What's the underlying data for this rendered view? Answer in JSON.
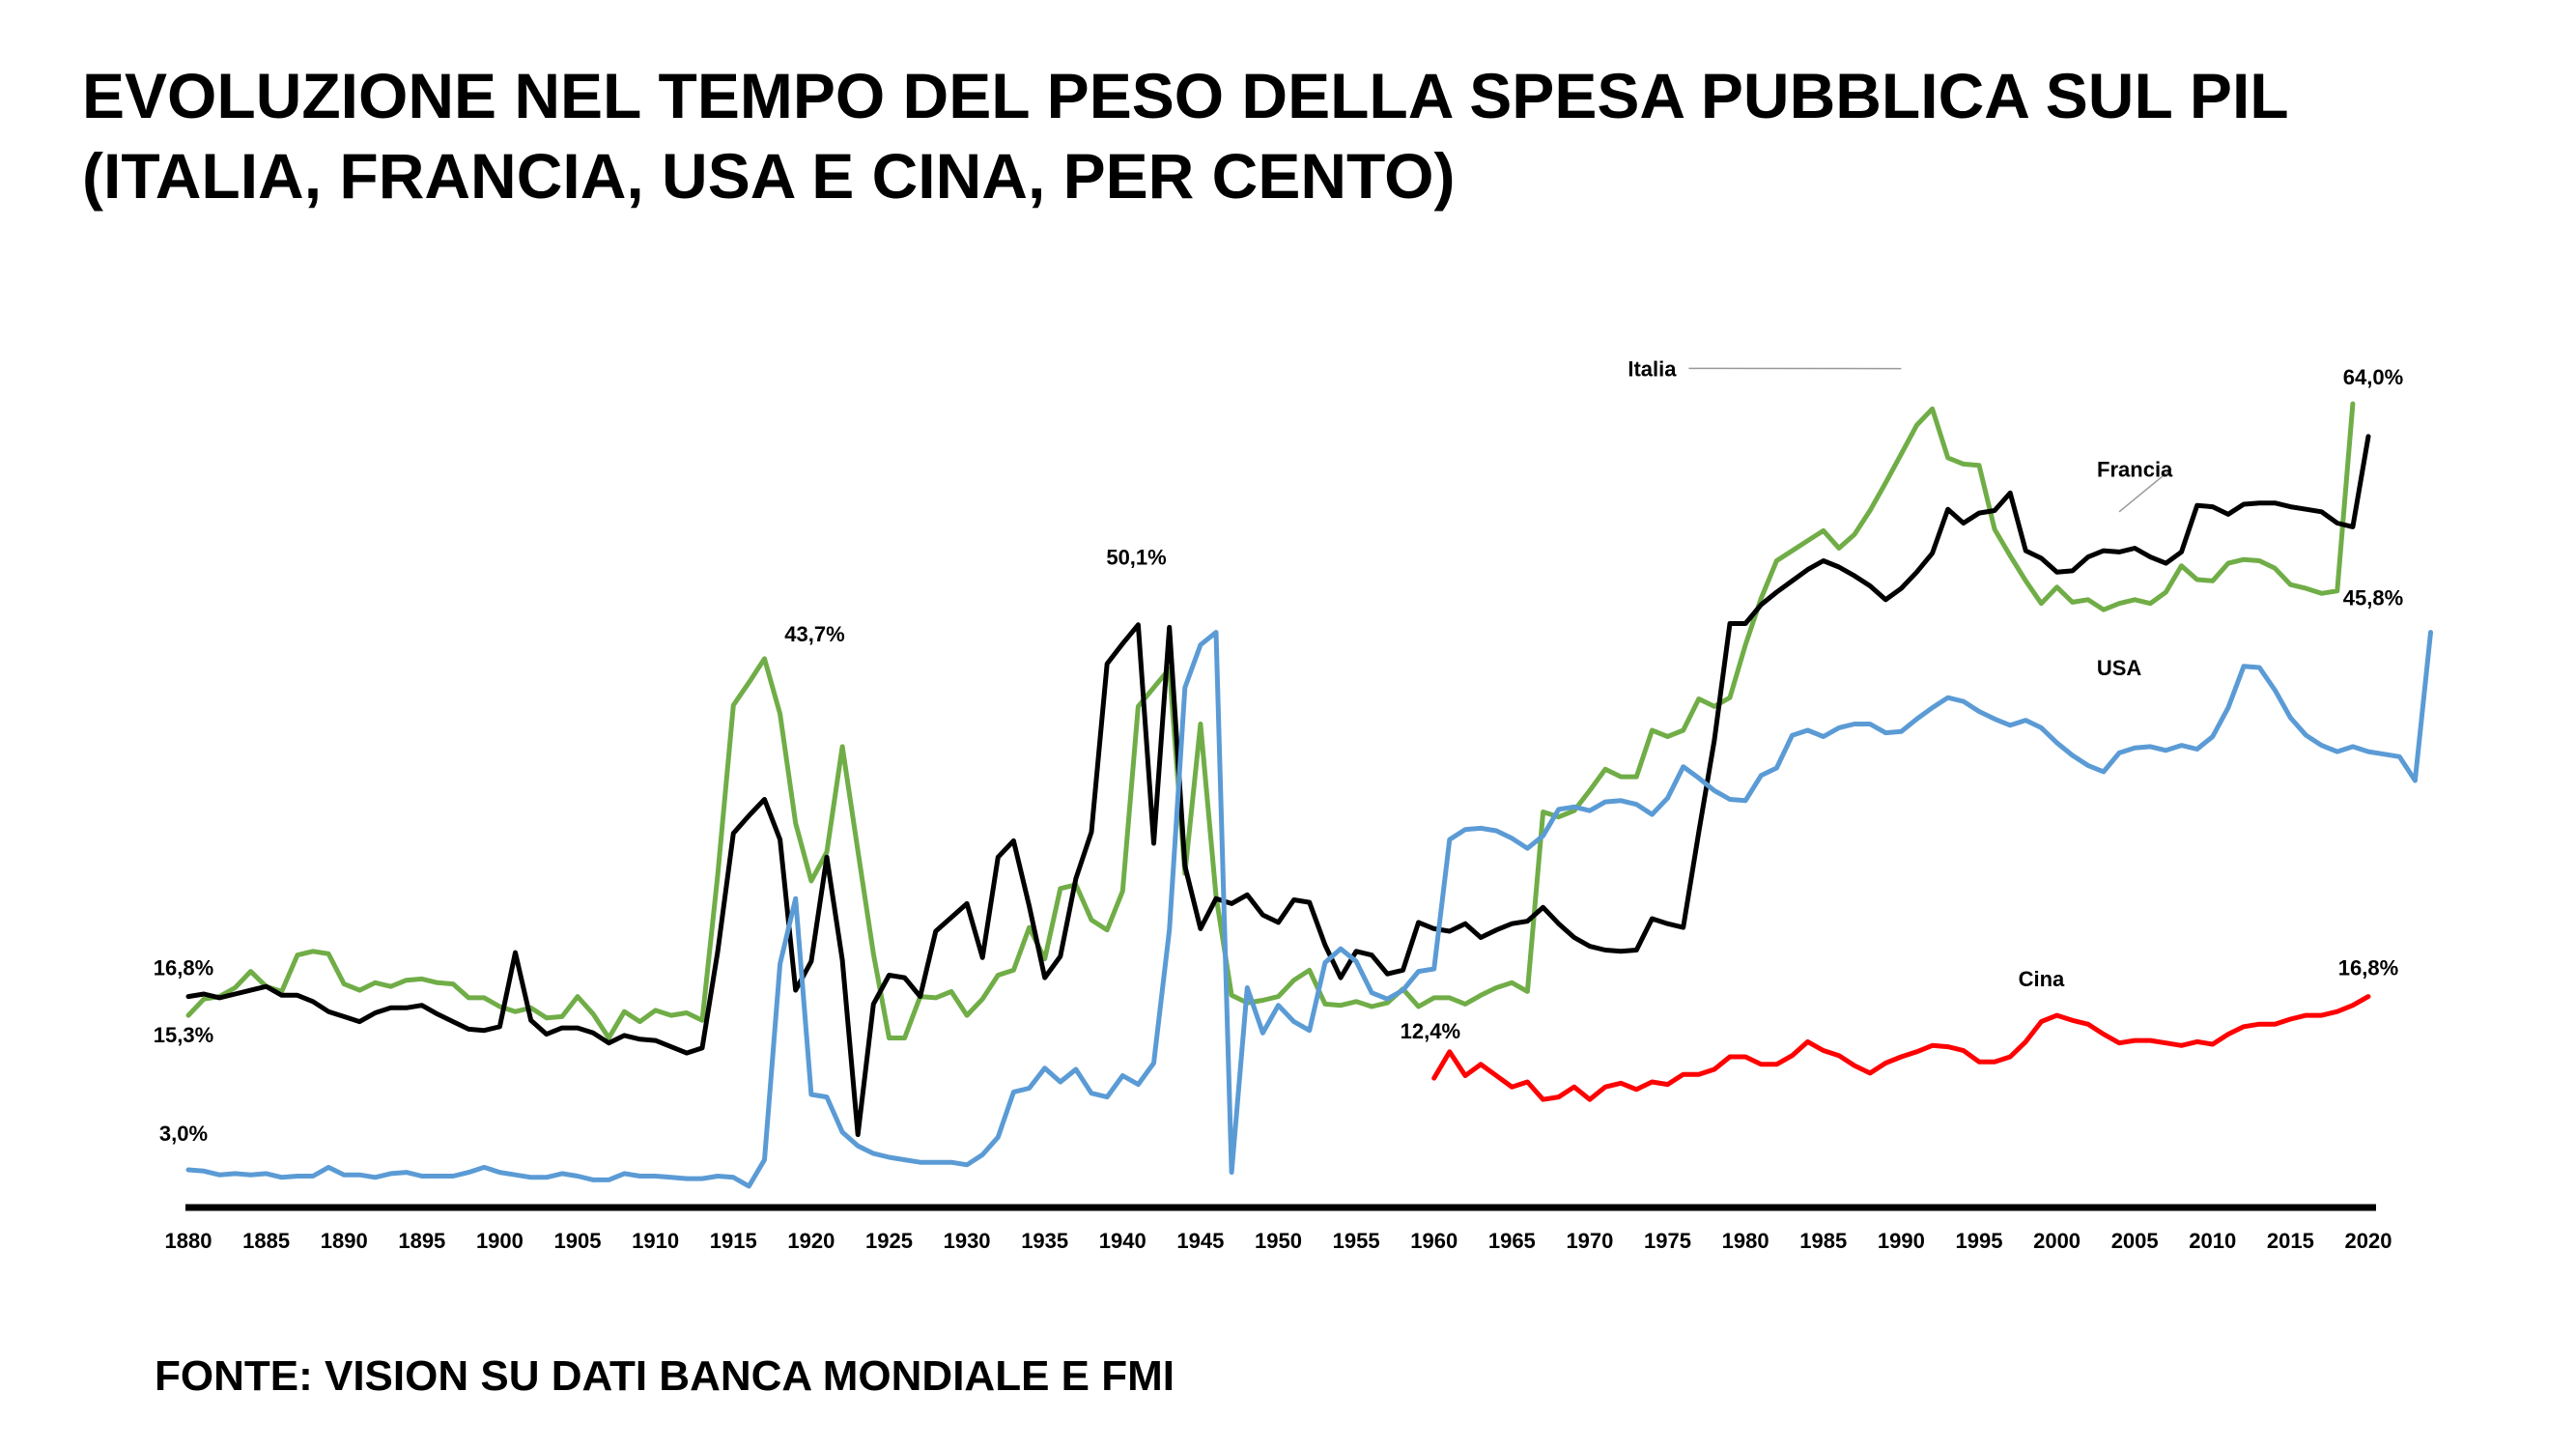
{
  "page": {
    "title_line1": "EVOLUZIONE NEL TEMPO DEL PESO DELLA SPESA PUBBLICA SUL PIL",
    "title_line2": "(ITALIA, FRANCIA, USA E CINA, PER CENTO)",
    "source": "FONTE: VISION SU DATI BANCA MONDIALE E FMI"
  },
  "chart_data": {
    "type": "line",
    "title": "EVOLUZIONE NEL TEMPO DEL PESO DELLA SPESA PUBBLICA SUL PIL (ITALIA, FRANCIA, USA E CINA, PER CENTO)",
    "xlabel": "",
    "ylabel": "",
    "xlim": [
      1880,
      2020
    ],
    "ylim": [
      0,
      70
    ],
    "grid": false,
    "x_ticks": [
      1880,
      1885,
      1890,
      1895,
      1900,
      1905,
      1910,
      1915,
      1920,
      1925,
      1930,
      1935,
      1940,
      1945,
      1950,
      1955,
      1960,
      1965,
      1970,
      1975,
      1980,
      1985,
      1990,
      1995,
      2000,
      2005,
      2010,
      2015,
      2020
    ],
    "series": [
      {
        "name": "Italia",
        "color": "#70AD47",
        "start_year": 1880,
        "values": [
          15.3,
          16.6,
          16.8,
          17.5,
          18.8,
          17.6,
          17.2,
          20.1,
          20.4,
          20.2,
          17.8,
          17.3,
          17.9,
          17.6,
          18.1,
          18.2,
          17.9,
          17.8,
          16.7,
          16.7,
          16.0,
          15.6,
          15.9,
          15.1,
          15.2,
          16.8,
          15.4,
          13.5,
          15.6,
          14.8,
          15.7,
          15.3,
          15.5,
          14.9,
          26.5,
          40.0,
          41.8,
          43.7,
          39.3,
          30.6,
          26.0,
          28.3,
          36.7,
          28.4,
          20.2,
          13.5,
          13.5,
          16.8,
          16.7,
          17.2,
          15.3,
          16.6,
          18.5,
          18.9,
          22.3,
          19.8,
          25.4,
          25.7,
          22.9,
          22.1,
          25.2,
          39.9,
          41.4,
          42.9,
          26.6,
          38.5,
          24.8,
          16.9,
          16.3,
          16.5,
          16.8,
          18.1,
          18.9,
          16.2,
          16.1,
          16.4,
          16.0,
          16.3,
          17.4,
          16.0,
          16.7,
          16.7,
          16.2,
          16.9,
          17.5,
          17.9,
          17.2,
          31.5,
          31.1,
          31.6,
          33.2,
          34.9,
          34.3,
          34.3,
          38.0,
          37.5,
          38.0,
          40.5,
          39.9,
          40.6,
          44.8,
          48.5,
          51.5,
          52.3,
          53.1,
          53.9,
          52.5,
          53.6,
          55.5,
          57.7,
          60.0,
          62.3,
          63.6,
          59.7,
          59.2,
          59.1,
          54.0,
          51.9,
          49.9,
          48.1,
          49.4,
          48.2,
          48.4,
          47.6,
          48.1,
          48.4,
          48.1,
          49.0,
          51.1,
          50.0,
          49.9,
          51.3,
          51.6,
          51.5,
          50.9,
          49.6,
          49.3,
          48.9,
          49.1,
          64.0
        ]
      },
      {
        "name": "Francia",
        "color": "#000000",
        "start_year": 1880,
        "values": [
          16.8,
          17.0,
          16.7,
          17.0,
          17.3,
          17.6,
          16.9,
          16.9,
          16.4,
          15.6,
          15.2,
          14.8,
          15.5,
          15.9,
          15.9,
          16.1,
          15.4,
          14.8,
          14.2,
          14.1,
          14.4,
          20.3,
          14.9,
          13.8,
          14.3,
          14.3,
          13.9,
          13.1,
          13.7,
          13.4,
          13.3,
          12.8,
          12.3,
          12.7,
          20.4,
          29.8,
          31.2,
          32.5,
          29.3,
          17.3,
          19.6,
          27.9,
          19.7,
          5.8,
          16.2,
          18.5,
          18.3,
          16.8,
          22.0,
          23.1,
          24.2,
          19.9,
          27.9,
          29.2,
          24.0,
          18.3,
          20.0,
          26.2,
          29.9,
          43.3,
          44.9,
          46.4,
          29.0,
          46.2,
          27.2,
          22.2,
          24.6,
          24.2,
          24.9,
          23.3,
          22.7,
          24.5,
          24.3,
          20.9,
          18.3,
          20.4,
          20.1,
          18.6,
          18.9,
          22.7,
          22.2,
          22.0,
          22.6,
          21.5,
          22.1,
          22.6,
          22.8,
          23.9,
          22.6,
          21.5,
          20.8,
          20.5,
          20.4,
          20.5,
          23.0,
          22.6,
          22.3,
          29.9,
          37.2,
          46.5,
          46.5,
          48.0,
          49.0,
          49.9,
          50.8,
          51.5,
          51.0,
          50.3,
          49.5,
          48.4,
          49.3,
          50.6,
          52.1,
          55.6,
          54.5,
          55.3,
          55.5,
          56.9,
          52.3,
          51.7,
          50.6,
          50.7,
          51.8,
          52.3,
          52.2,
          52.5,
          51.8,
          51.3,
          52.2,
          55.9,
          55.8,
          55.2,
          56.0,
          56.1,
          56.1,
          55.8,
          55.6,
          55.4,
          54.5,
          54.2,
          61.4
        ]
      },
      {
        "name": "USA",
        "color": "#5B9BD5",
        "start_year": 1880,
        "values": [
          3.0,
          2.9,
          2.6,
          2.7,
          2.6,
          2.7,
          2.4,
          2.5,
          2.5,
          3.2,
          2.6,
          2.6,
          2.4,
          2.7,
          2.8,
          2.5,
          2.5,
          2.5,
          2.8,
          3.2,
          2.8,
          2.6,
          2.4,
          2.4,
          2.7,
          2.5,
          2.2,
          2.2,
          2.7,
          2.5,
          2.5,
          2.4,
          2.3,
          2.3,
          2.5,
          2.4,
          1.7,
          3.8,
          19.4,
          24.6,
          9.0,
          8.8,
          6.0,
          4.9,
          4.3,
          4.0,
          3.8,
          3.6,
          3.6,
          3.6,
          3.4,
          4.2,
          5.6,
          9.2,
          9.5,
          11.1,
          10.0,
          11.0,
          9.1,
          8.8,
          10.5,
          9.8,
          11.5,
          22.1,
          41.4,
          44.8,
          45.8,
          2.8,
          17.5,
          13.9,
          16.1,
          14.8,
          14.1,
          19.5,
          20.6,
          19.6,
          17.1,
          16.6,
          17.3,
          18.8,
          19.0,
          29.3,
          30.1,
          30.2,
          30.0,
          29.4,
          28.6,
          29.6,
          31.7,
          31.9,
          31.6,
          32.3,
          32.4,
          32.1,
          31.3,
          32.6,
          35.1,
          34.2,
          33.2,
          32.5,
          32.4,
          34.4,
          35.0,
          37.6,
          38.0,
          37.5,
          38.2,
          38.5,
          38.5,
          37.8,
          37.9,
          38.9,
          39.8,
          40.6,
          40.3,
          39.5,
          38.9,
          38.4,
          38.8,
          38.2,
          37.0,
          36.0,
          35.2,
          34.7,
          36.2,
          36.6,
          36.7,
          36.4,
          36.8,
          36.5,
          37.5,
          39.8,
          43.1,
          43.0,
          41.2,
          39.0,
          37.6,
          36.8,
          36.3,
          36.7,
          36.3,
          36.1,
          35.9,
          34.0,
          45.8
        ]
      },
      {
        "name": "Cina",
        "color": "#FF0000",
        "start_year": 1960,
        "values": [
          10.3,
          12.4,
          10.5,
          11.4,
          10.5,
          9.6,
          10.0,
          8.6,
          8.8,
          9.6,
          8.6,
          9.6,
          9.9,
          9.4,
          10.0,
          9.8,
          10.6,
          10.6,
          11.0,
          12.0,
          12.0,
          11.4,
          11.4,
          12.1,
          13.2,
          12.5,
          12.1,
          11.3,
          10.7,
          11.5,
          12.0,
          12.4,
          12.9,
          12.8,
          12.5,
          11.6,
          11.6,
          12.0,
          13.2,
          14.8,
          15.3,
          14.9,
          14.6,
          13.8,
          13.1,
          13.3,
          13.3,
          13.1,
          12.9,
          13.2,
          13.0,
          13.8,
          14.4,
          14.6,
          14.6,
          15.0,
          15.3,
          15.3,
          15.6,
          16.1,
          16.8
        ]
      }
    ],
    "series_labels": [
      "Italia",
      "Francia",
      "USA",
      "Cina"
    ],
    "annotations": [
      {
        "text": "16,8%",
        "year": 1880,
        "value": 16.8
      },
      {
        "text": "15,3%",
        "year": 1880,
        "value": 15.3
      },
      {
        "text": "3,0%",
        "year": 1880,
        "value": 3.0
      },
      {
        "text": "43,7%",
        "year": 1917,
        "value": 43.7
      },
      {
        "text": "50,1%",
        "year": 1942,
        "value": 50.1
      },
      {
        "text": "12,4%",
        "year": 1961,
        "value": 12.4
      },
      {
        "text": "64,0%",
        "year": 2020,
        "value": 64.0
      },
      {
        "text": "45,8%",
        "year": 2020,
        "value": 45.8
      },
      {
        "text": "16,8%",
        "year": 2020,
        "value": 16.8
      }
    ]
  }
}
